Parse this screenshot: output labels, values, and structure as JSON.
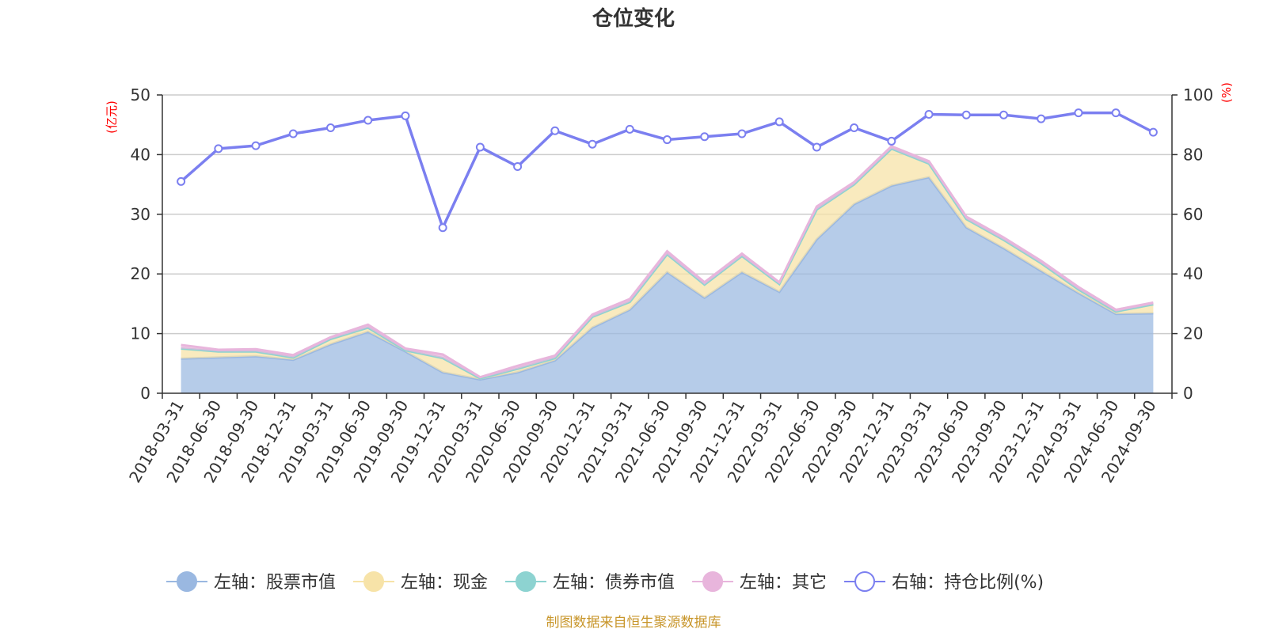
{
  "chart_data": {
    "type": "area",
    "title": "仓位变化",
    "source": "制图数据来自恒生聚源数据库",
    "left_axis": {
      "unit": "(亿元)",
      "ylim": [
        0,
        50
      ],
      "ticks": [
        "0",
        "10",
        "20",
        "30",
        "40",
        "50"
      ]
    },
    "right_axis": {
      "unit": "(%)",
      "ylim": [
        0,
        100
      ],
      "ticks": [
        "0",
        "20",
        "40",
        "60",
        "80",
        "100"
      ]
    },
    "categories": [
      "2018-03-31",
      "2018-06-30",
      "2018-09-30",
      "2018-12-31",
      "2019-03-31",
      "2019-06-30",
      "2019-09-30",
      "2019-12-31",
      "2020-03-31",
      "2020-06-30",
      "2020-09-30",
      "2020-12-31",
      "2021-03-31",
      "2021-06-30",
      "2021-09-30",
      "2021-12-31",
      "2022-03-31",
      "2022-06-30",
      "2022-09-30",
      "2022-12-31",
      "2023-03-31",
      "2023-06-30",
      "2023-09-30",
      "2023-12-31",
      "2024-03-31",
      "2024-06-30",
      "2024-09-30"
    ],
    "series": [
      {
        "name": "左轴：股票市值",
        "axis": "left",
        "stack": true,
        "color": "#9ab8e1",
        "values": [
          5.8,
          6.0,
          6.2,
          5.6,
          8.2,
          10.3,
          7.0,
          3.5,
          2.3,
          3.5,
          5.5,
          11.0,
          14.0,
          20.3,
          16.0,
          20.3,
          17.0,
          25.8,
          31.7,
          34.8,
          36.2,
          27.8,
          24.3,
          20.5,
          16.8,
          13.3,
          13.4
        ]
      },
      {
        "name": "左轴：现金",
        "axis": "left",
        "stack": true,
        "color": "#f7e3a8",
        "values": [
          1.7,
          1.0,
          0.8,
          0.4,
          0.9,
          0.7,
          0.2,
          2.4,
          0.2,
          0.6,
          0.4,
          1.8,
          1.3,
          3.0,
          2.2,
          2.7,
          1.3,
          5.0,
          3.3,
          6.2,
          2.3,
          1.4,
          1.4,
          1.3,
          0.6,
          0.4,
          1.5
        ]
      },
      {
        "name": "左轴：债券市值",
        "axis": "left",
        "stack": true,
        "color": "#8dd3d1",
        "values": [
          0,
          0,
          0,
          0,
          0,
          0,
          0,
          0,
          0,
          0,
          0,
          0,
          0,
          0,
          0,
          0,
          0,
          0,
          0,
          0,
          0,
          0,
          0,
          0,
          0,
          0,
          0
        ]
      },
      {
        "name": "左轴：其它",
        "axis": "left",
        "stack": true,
        "color": "#e8b5dc",
        "values": [
          0.6,
          0.3,
          0.4,
          0.4,
          0.3,
          0.5,
          0.3,
          0.6,
          0.2,
          0.5,
          0.4,
          0.4,
          0.5,
          0.5,
          0.4,
          0.4,
          0.3,
          0.5,
          0.4,
          0.4,
          0.4,
          0.4,
          0.4,
          0.4,
          0.4,
          0.3,
          0.3
        ]
      },
      {
        "name": "右轴：持仓比例(%)",
        "axis": "right",
        "stack": false,
        "color": "#7b7ff0",
        "values": [
          71,
          82,
          83,
          87,
          89,
          91.5,
          93,
          55.5,
          82.5,
          76,
          88,
          83.5,
          88.5,
          85,
          86,
          87,
          91,
          82.5,
          89,
          84.5,
          93.5,
          93.3,
          93.3,
          92,
          94,
          94,
          87.5
        ]
      }
    ],
    "grid": true,
    "legend_position": "bottom"
  }
}
